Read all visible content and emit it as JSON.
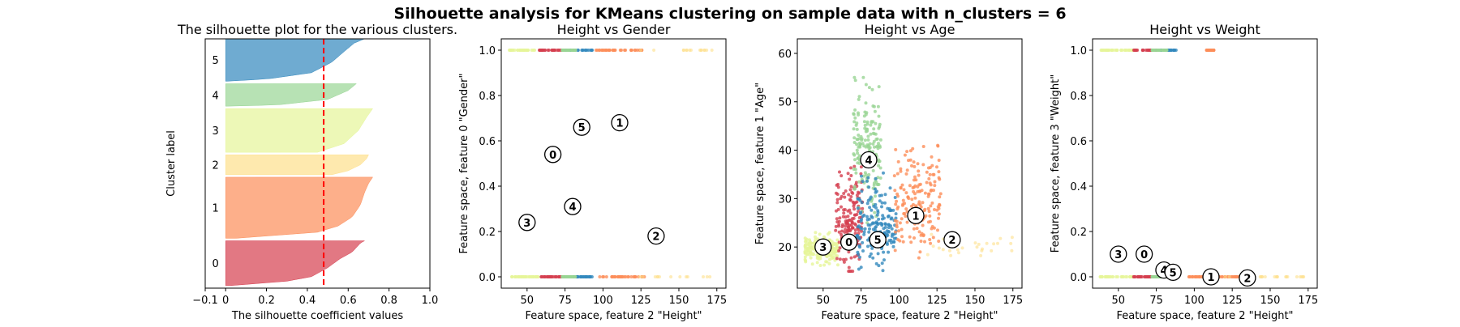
{
  "figure": {
    "suptitle": "Silhouette analysis for KMeans clustering on sample data with n_clusters = 6"
  },
  "colors": {
    "cluster": [
      "#d53e4f",
      "#fc8d59",
      "#fee08b",
      "#e6f598",
      "#99d594",
      "#3288bd"
    ],
    "threshold_line": "#ff0000",
    "center_fill": "#ffffff"
  },
  "chart_data": [
    {
      "type": "area",
      "title": "The silhouette plot for the various clusters.",
      "xlabel": "The silhouette coefficient values",
      "ylabel": "Cluster label",
      "xlim": [
        -0.1,
        1.0
      ],
      "ylim": [
        0,
        1000
      ],
      "xticks": [
        -0.1,
        0,
        0.2,
        0.4,
        0.6,
        0.8,
        1.0
      ],
      "xtick_labels": [
        "−0.1",
        "0",
        "0.2",
        "0.4",
        "0.6",
        "0.8",
        "1.0"
      ],
      "average_silhouette": 0.48,
      "clusters": [
        {
          "label": "0",
          "y_range": [
            10,
            190
          ],
          "profile": [
            [
              0,
              0.02
            ],
            [
              0.1,
              0.3
            ],
            [
              0.2,
              0.42
            ],
            [
              0.4,
              0.5
            ],
            [
              0.6,
              0.56
            ],
            [
              0.75,
              0.62
            ],
            [
              0.85,
              0.64
            ],
            [
              0.95,
              0.66
            ],
            [
              1.0,
              0.68
            ]
          ]
        },
        {
          "label": "1",
          "y_range": [
            200,
            445
          ],
          "profile": [
            [
              0,
              0.05
            ],
            [
              0.1,
              0.45
            ],
            [
              0.2,
              0.55
            ],
            [
              0.35,
              0.62
            ],
            [
              0.55,
              0.66
            ],
            [
              0.75,
              0.68
            ],
            [
              0.9,
              0.7
            ],
            [
              1.0,
              0.72
            ]
          ]
        },
        {
          "label": "2",
          "y_range": [
            455,
            535
          ],
          "profile": [
            [
              0,
              0.52
            ],
            [
              0.2,
              0.6
            ],
            [
              0.5,
              0.66
            ],
            [
              0.8,
              0.69
            ],
            [
              1.0,
              0.7
            ]
          ]
        },
        {
          "label": "3",
          "y_range": [
            545,
            720
          ],
          "profile": [
            [
              0,
              0.45
            ],
            [
              0.2,
              0.58
            ],
            [
              0.5,
              0.65
            ],
            [
              0.8,
              0.69
            ],
            [
              1.0,
              0.72
            ]
          ]
        },
        {
          "label": "4",
          "y_range": [
            730,
            820
          ],
          "profile": [
            [
              0,
              0.0
            ],
            [
              0.05,
              0.25
            ],
            [
              0.3,
              0.5
            ],
            [
              0.7,
              0.6
            ],
            [
              1.0,
              0.64
            ]
          ]
        },
        {
          "label": "5",
          "y_range": [
            830,
            1000
          ],
          "profile": [
            [
              0,
              0.0
            ],
            [
              0.05,
              0.2
            ],
            [
              0.2,
              0.42
            ],
            [
              0.45,
              0.52
            ],
            [
              0.7,
              0.58
            ],
            [
              0.9,
              0.63
            ],
            [
              1.0,
              0.68
            ]
          ]
        }
      ]
    },
    {
      "type": "scatter",
      "title": "Height vs Gender",
      "xlabel": "Feature space, feature 2 \"Height\"",
      "ylabel": "Feature space, feature 0 \"Gender\"",
      "xlim": [
        33,
        181
      ],
      "ylim": [
        -0.05,
        1.05
      ],
      "xticks": [
        50,
        75,
        100,
        125,
        150,
        175
      ],
      "yticks": [
        0.0,
        0.2,
        0.4,
        0.6,
        0.8,
        1.0
      ],
      "ytick_labels": [
        "0.0",
        "0.2",
        "0.4",
        "0.6",
        "0.8",
        "1.0"
      ],
      "series": [
        {
          "cluster": 3,
          "x_range": [
            38,
            58
          ],
          "y": [
            0,
            1
          ]
        },
        {
          "cluster": 0,
          "x_range": [
            58,
            76
          ],
          "y": [
            0,
            1
          ]
        },
        {
          "cluster": 5,
          "x_range": [
            76,
            93
          ],
          "y": [
            0,
            1
          ]
        },
        {
          "cluster": 4,
          "x_range": [
            73,
            82
          ],
          "y": [
            0,
            1
          ]
        },
        {
          "cluster": 1,
          "x_range": [
            95,
            128
          ],
          "y": [
            0,
            1
          ]
        },
        {
          "cluster": 2,
          "x_range": [
            120,
            173
          ],
          "y": [
            0,
            1
          ],
          "sparse": true
        }
      ],
      "centers": [
        {
          "label": "0",
          "x": 67,
          "y": 0.54
        },
        {
          "label": "1",
          "x": 111,
          "y": 0.68
        },
        {
          "label": "2",
          "x": 135,
          "y": 0.18
        },
        {
          "label": "3",
          "x": 50,
          "y": 0.24
        },
        {
          "label": "4",
          "x": 80,
          "y": 0.31
        },
        {
          "label": "5",
          "x": 86,
          "y": 0.66
        }
      ]
    },
    {
      "type": "scatter",
      "title": "Height vs Age",
      "xlabel": "Feature space, feature 2 \"Height\"",
      "ylabel": "Feature space, feature 1 \"Age\"",
      "xlim": [
        33,
        181
      ],
      "ylim": [
        11.5,
        63
      ],
      "xticks": [
        50,
        75,
        100,
        125,
        150,
        175
      ],
      "yticks": [
        20,
        30,
        40,
        50,
        60
      ],
      "series": [
        {
          "cluster": 3,
          "x_range": [
            38,
            60
          ],
          "y_range": [
            16,
            23
          ]
        },
        {
          "cluster": 0,
          "x_range": [
            58,
            76
          ],
          "y_range": [
            15,
            38
          ]
        },
        {
          "cluster": 4,
          "x_range": [
            70,
            88
          ],
          "y_range": [
            25,
            55
          ]
        },
        {
          "cluster": 5,
          "x_range": [
            72,
            98
          ],
          "y_range": [
            14,
            36
          ]
        },
        {
          "cluster": 1,
          "x_range": [
            97,
            128
          ],
          "y_range": [
            16,
            41
          ]
        },
        {
          "cluster": 2,
          "x_range": [
            118,
            175
          ],
          "y_range": [
            18,
            23
          ],
          "sparse": true
        }
      ],
      "centers": [
        {
          "label": "0",
          "x": 67,
          "y": 21
        },
        {
          "label": "1",
          "x": 111,
          "y": 26.5
        },
        {
          "label": "2",
          "x": 135,
          "y": 21.5
        },
        {
          "label": "3",
          "x": 50,
          "y": 20
        },
        {
          "label": "4",
          "x": 80,
          "y": 38
        },
        {
          "label": "5",
          "x": 86,
          "y": 21.5
        }
      ]
    },
    {
      "type": "scatter",
      "title": "Height vs Weight",
      "xlabel": "Feature space, feature 2 \"Height\"",
      "ylabel": "Feature space, feature 3 \"Weight\"",
      "xlim": [
        33,
        181
      ],
      "ylim": [
        -0.05,
        1.05
      ],
      "xticks": [
        50,
        75,
        100,
        125,
        150,
        175
      ],
      "yticks": [
        0.0,
        0.2,
        0.4,
        0.6,
        0.8,
        1.0
      ],
      "ytick_labels": [
        "0.0",
        "0.2",
        "0.4",
        "0.6",
        "0.8",
        "1.0"
      ],
      "series": [
        {
          "cluster": 3,
          "x_range": [
            38,
            60
          ],
          "y": [
            0,
            1
          ]
        },
        {
          "cluster": 0,
          "x_range": [
            60,
            77
          ],
          "y": [
            0,
            1
          ]
        },
        {
          "cluster": 5,
          "x_range": [
            77,
            88
          ],
          "y": [
            0,
            1
          ]
        },
        {
          "cluster": 4,
          "x_range": [
            72,
            82
          ],
          "y": [
            0,
            1
          ]
        },
        {
          "cluster": 1,
          "x_range": [
            96,
            130
          ],
          "y": [
            0
          ]
        },
        {
          "cluster": 1,
          "x_range": [
            108,
            113
          ],
          "y": [
            1
          ]
        },
        {
          "cluster": 2,
          "x_range": [
            120,
            175
          ],
          "y": [
            0
          ],
          "sparse": true
        }
      ],
      "centers": [
        {
          "label": "0",
          "x": 67,
          "y": 0.1
        },
        {
          "label": "1",
          "x": 111,
          "y": 0.0
        },
        {
          "label": "2",
          "x": 135,
          "y": -0.005
        },
        {
          "label": "3",
          "x": 50,
          "y": 0.1
        },
        {
          "label": "4",
          "x": 80,
          "y": 0.03
        },
        {
          "label": "5",
          "x": 86,
          "y": 0.02
        }
      ]
    }
  ]
}
